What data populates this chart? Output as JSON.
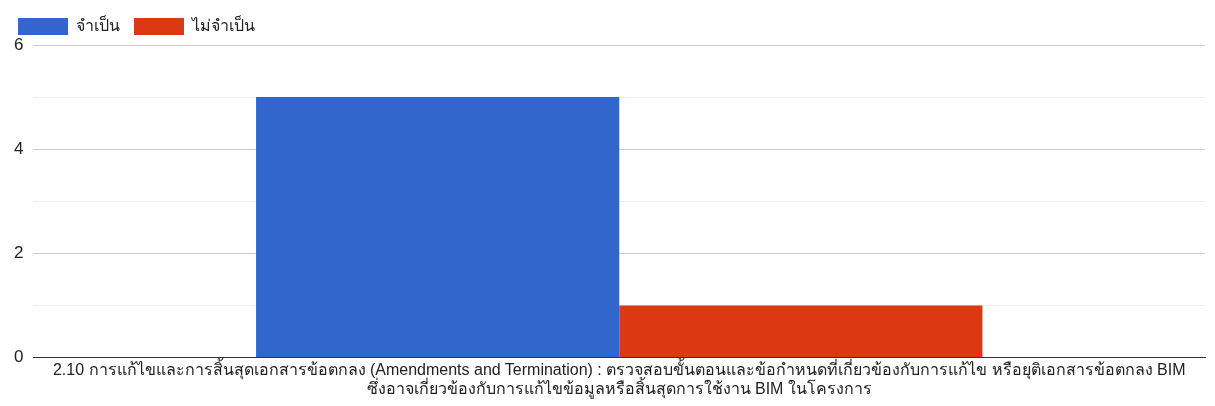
{
  "chart_data": {
    "type": "bar",
    "categories": [
      "2.10 การแก้ไขและการสิ้นสุดเอกสารข้อตกลง (Amendments and Termination) : ตรวจสอบขั้นตอนและข้อกำหนดที่เกี่ยวข้องกับการแก้ไข หรือยุติเอกสารข้อตกลง BIM ซึ่งอาจเกี่ยวข้องกับการแก้ไขข้อมูลหรือสิ้นสุดการใช้งาน BIM ในโครงการ"
    ],
    "series": [
      {
        "name": "จำเป็น",
        "color": "#3366cc",
        "values": [
          5
        ]
      },
      {
        "name": "ไม่จำเป็น",
        "color": "#dc3912",
        "values": [
          1
        ]
      }
    ],
    "ylim": [
      0,
      6
    ],
    "yticks": [
      0,
      {
        "value": 1,
        "label": null
      },
      2,
      {
        "value": 3,
        "label": null
      },
      4,
      {
        "value": 5,
        "label": null
      },
      6
    ],
    "grid": "y",
    "legend": "top left"
  }
}
